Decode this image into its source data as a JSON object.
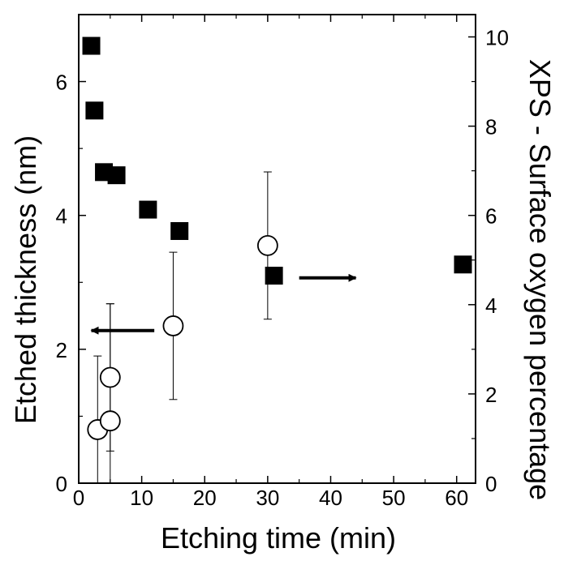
{
  "chart_data": {
    "type": "scatter",
    "title": "",
    "xlabel": "Etching time (min)",
    "ylabel_left": "Etched thickness (nm)",
    "ylabel_right": "XPS - Surface oxygen percentage",
    "xlim": [
      0,
      63
    ],
    "ylim_left": [
      0,
      7
    ],
    "ylim_right": [
      0,
      10.5
    ],
    "xticks": [
      "0",
      "10",
      "20",
      "30",
      "40",
      "50",
      "60"
    ],
    "yticks_left": [
      "0",
      "2",
      "4",
      "6"
    ],
    "yticks_right": [
      "0",
      "2",
      "4",
      "6",
      "8",
      "10"
    ],
    "grid": false,
    "legend": "none",
    "series": [
      {
        "axis": "right",
        "marker": "filled-square",
        "color": "#000000",
        "points": [
          {
            "x": 2,
            "y": 9.8
          },
          {
            "x": 2.5,
            "y": 8.35
          },
          {
            "x": 4,
            "y": 6.97
          },
          {
            "x": 6,
            "y": 6.9
          },
          {
            "x": 11,
            "y": 6.13
          },
          {
            "x": 16,
            "y": 5.65
          },
          {
            "x": 31,
            "y": 4.65
          },
          {
            "x": 61,
            "y": 4.9
          }
        ]
      },
      {
        "axis": "left",
        "marker": "open-circle",
        "color": "#000000",
        "points": [
          {
            "x": 3,
            "y": 0.8,
            "err": 1.1
          },
          {
            "x": 5,
            "y": 0.93,
            "err": 1.75
          },
          {
            "x": 5,
            "y": 1.58,
            "err": 1.1
          },
          {
            "x": 15,
            "y": 2.35,
            "err": 1.1
          },
          {
            "x": 30,
            "y": 3.55,
            "err": 1.1
          }
        ]
      }
    ],
    "annotations": [
      {
        "type": "arrow",
        "direction": "left",
        "from": [
          12,
          2.28
        ],
        "to": [
          2,
          2.28
        ],
        "axis": "left"
      },
      {
        "type": "arrow",
        "direction": "right",
        "from": [
          35,
          4.6
        ],
        "to": [
          44,
          4.6
        ],
        "axis": "right"
      }
    ]
  }
}
